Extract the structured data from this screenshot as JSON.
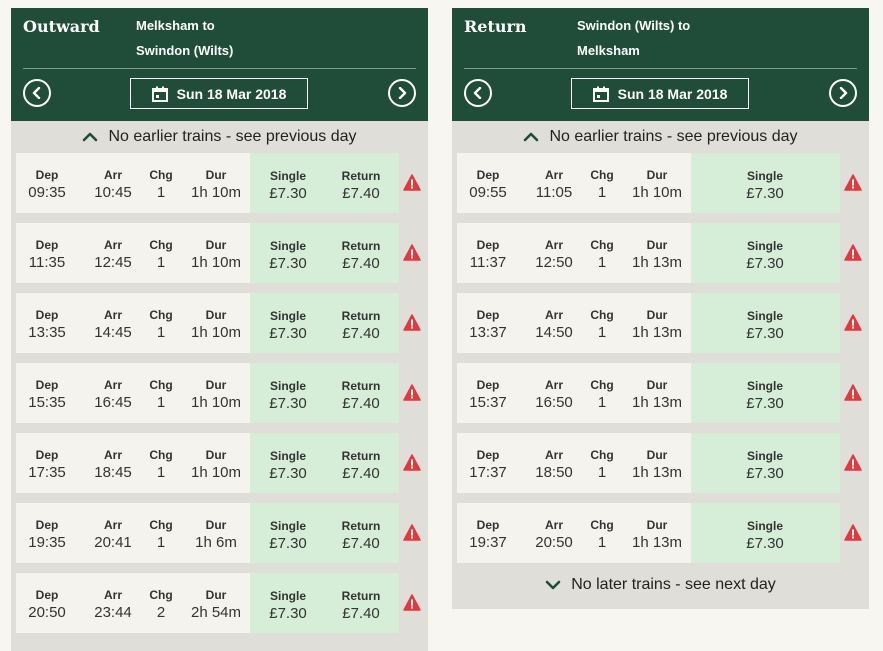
{
  "outward": {
    "title": "Outward",
    "route_from": "Melksham to",
    "route_to": "Swindon (Wilts)",
    "date": "Sun 18 Mar 2018",
    "earlier_text": "No earlier trains - see previous day",
    "labels": {
      "dep": "Dep",
      "arr": "Arr",
      "chg": "Chg",
      "dur": "Dur",
      "single": "Single",
      "return": "Return"
    },
    "rows": [
      {
        "dep": "09:35",
        "arr": "10:45",
        "chg": "1",
        "dur": "1h 10m",
        "single": "£7.30",
        "return": "£7.40"
      },
      {
        "dep": "11:35",
        "arr": "12:45",
        "chg": "1",
        "dur": "1h 10m",
        "single": "£7.30",
        "return": "£7.40"
      },
      {
        "dep": "13:35",
        "arr": "14:45",
        "chg": "1",
        "dur": "1h 10m",
        "single": "£7.30",
        "return": "£7.40"
      },
      {
        "dep": "15:35",
        "arr": "16:45",
        "chg": "1",
        "dur": "1h 10m",
        "single": "£7.30",
        "return": "£7.40"
      },
      {
        "dep": "17:35",
        "arr": "18:45",
        "chg": "1",
        "dur": "1h 10m",
        "single": "£7.30",
        "return": "£7.40"
      },
      {
        "dep": "19:35",
        "arr": "20:41",
        "chg": "1",
        "dur": "1h 6m",
        "single": "£7.30",
        "return": "£7.40"
      },
      {
        "dep": "20:50",
        "arr": "23:44",
        "chg": "2",
        "dur": "2h 54m",
        "single": "£7.30",
        "return": "£7.40"
      }
    ]
  },
  "return": {
    "title": "Return",
    "route_from": "Swindon (Wilts) to",
    "route_to": "Melksham",
    "date": "Sun 18 Mar 2018",
    "earlier_text": "No earlier trains - see previous day",
    "later_text": "No later trains - see next day",
    "labels": {
      "dep": "Dep",
      "arr": "Arr",
      "chg": "Chg",
      "dur": "Dur",
      "single": "Single"
    },
    "rows": [
      {
        "dep": "09:55",
        "arr": "11:05",
        "chg": "1",
        "dur": "1h 10m",
        "single": "£7.30"
      },
      {
        "dep": "11:37",
        "arr": "12:50",
        "chg": "1",
        "dur": "1h 13m",
        "single": "£7.30"
      },
      {
        "dep": "13:37",
        "arr": "14:50",
        "chg": "1",
        "dur": "1h 13m",
        "single": "£7.30"
      },
      {
        "dep": "15:37",
        "arr": "16:50",
        "chg": "1",
        "dur": "1h 13m",
        "single": "£7.30"
      },
      {
        "dep": "17:37",
        "arr": "18:50",
        "chg": "1",
        "dur": "1h 13m",
        "single": "£7.30"
      },
      {
        "dep": "19:37",
        "arr": "20:50",
        "chg": "1",
        "dur": "1h 13m",
        "single": "£7.30"
      }
    ]
  },
  "icons": {
    "prev": "chevron-left-icon",
    "next": "chevron-right-icon",
    "calendar": "calendar-icon",
    "up": "chevron-up-icon",
    "down": "chevron-down-icon",
    "warning": "warning-icon"
  },
  "colors": {
    "header": "#1f4d3a",
    "panel_bg": "#e0ded8",
    "row_bg": "#f5f3ee",
    "fare_bg": "#d6eed7",
    "warning": "#e0393e",
    "page_bg": "#f8f6f1"
  }
}
